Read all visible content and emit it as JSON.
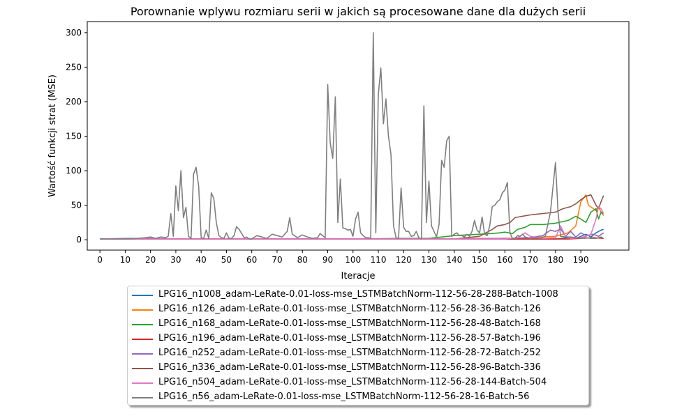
{
  "chart_data": {
    "type": "line",
    "title": "Porownanie wplywu rozmiaru serii w jakich są procesowane dane dla dużych serii",
    "xlabel": "Iteracje",
    "ylabel": "Wartość funkcji strat (MSE)",
    "xlim": [
      -5,
      209
    ],
    "ylim": [
      -15,
      316
    ],
    "xticks": [
      0,
      10,
      20,
      30,
      40,
      50,
      60,
      70,
      80,
      90,
      100,
      110,
      120,
      130,
      140,
      150,
      160,
      170,
      180,
      190
    ],
    "yticks": [
      0,
      50,
      100,
      150,
      200,
      250,
      300
    ],
    "grid": false,
    "legend_position": "below",
    "series": [
      {
        "name": "LPG16_n1008_adam-LeRate-0.01-loss-mse_LSTMBatchNorm-112-56-28-288-Batch-1008",
        "color": "#1f77b4",
        "points": [
          [
            0,
            1
          ],
          [
            100,
            1
          ],
          [
            140,
            1
          ],
          [
            150,
            1
          ],
          [
            160,
            1
          ],
          [
            170,
            1
          ],
          [
            180,
            1
          ],
          [
            185,
            3
          ],
          [
            188,
            2
          ],
          [
            190,
            5
          ],
          [
            192,
            8
          ],
          [
            194,
            4
          ],
          [
            196,
            10
          ],
          [
            198,
            14
          ],
          [
            199,
            15
          ]
        ]
      },
      {
        "name": "LPG16_n126_adam-LeRate-0.01-loss-mse_LSTMBatchNorm-112-56-28-36-Batch-126",
        "color": "#ff7f0e",
        "points": [
          [
            0,
            1
          ],
          [
            140,
            1
          ],
          [
            150,
            2
          ],
          [
            160,
            2
          ],
          [
            170,
            3
          ],
          [
            175,
            4
          ],
          [
            180,
            5
          ],
          [
            185,
            10
          ],
          [
            188,
            20
          ],
          [
            190,
            55
          ],
          [
            192,
            65
          ],
          [
            193,
            50
          ],
          [
            195,
            45
          ],
          [
            196,
            42
          ],
          [
            197,
            48
          ],
          [
            198,
            40
          ],
          [
            199,
            35
          ]
        ]
      },
      {
        "name": "LPG16_n168_adam-LeRate-0.01-loss-mse_LSTMBatchNorm-112-56-28-48-Batch-168",
        "color": "#2ca02c",
        "points": [
          [
            0,
            1
          ],
          [
            100,
            1
          ],
          [
            120,
            2
          ],
          [
            130,
            2
          ],
          [
            135,
            4
          ],
          [
            140,
            6
          ],
          [
            145,
            7
          ],
          [
            150,
            8
          ],
          [
            155,
            9
          ],
          [
            158,
            10
          ],
          [
            160,
            11
          ],
          [
            163,
            9
          ],
          [
            165,
            15
          ],
          [
            168,
            18
          ],
          [
            170,
            22
          ],
          [
            175,
            22
          ],
          [
            180,
            24
          ],
          [
            185,
            28
          ],
          [
            188,
            34
          ],
          [
            190,
            30
          ],
          [
            192,
            25
          ],
          [
            194,
            40
          ],
          [
            196,
            45
          ],
          [
            197,
            30
          ],
          [
            198,
            40
          ],
          [
            199,
            38
          ]
        ]
      },
      {
        "name": "LPG16_n196_adam-LeRate-0.01-loss-mse_LSTMBatchNorm-112-56-28-57-Batch-196",
        "color": "#d62728",
        "points": [
          [
            0,
            1
          ],
          [
            150,
            1
          ],
          [
            160,
            1
          ],
          [
            170,
            1
          ],
          [
            180,
            1
          ],
          [
            185,
            1
          ],
          [
            190,
            2
          ],
          [
            195,
            3
          ],
          [
            199,
            2
          ]
        ]
      },
      {
        "name": "LPG16_n252_adam-LeRate-0.01-loss-mse_LSTMBatchNorm-112-56-28-72-Batch-252",
        "color": "#9467bd",
        "points": [
          [
            0,
            1
          ],
          [
            10,
            2
          ],
          [
            20,
            2
          ],
          [
            30,
            1
          ],
          [
            100,
            1
          ],
          [
            140,
            1
          ],
          [
            160,
            2
          ],
          [
            170,
            3
          ],
          [
            175,
            6
          ],
          [
            178,
            14
          ],
          [
            180,
            12
          ],
          [
            182,
            16
          ],
          [
            184,
            5
          ],
          [
            186,
            12
          ],
          [
            188,
            4
          ],
          [
            190,
            10
          ],
          [
            192,
            6
          ],
          [
            195,
            8
          ],
          [
            197,
            5
          ],
          [
            199,
            10
          ]
        ]
      },
      {
        "name": "LPG16_n336_adam-LeRate-0.01-loss-mse_LSTMBatchNorm-112-56-28-96-Batch-336",
        "color": "#8c564b",
        "points": [
          [
            0,
            1
          ],
          [
            140,
            1
          ],
          [
            145,
            3
          ],
          [
            150,
            5
          ],
          [
            155,
            15
          ],
          [
            157,
            20
          ],
          [
            160,
            22
          ],
          [
            162,
            25
          ],
          [
            164,
            32
          ],
          [
            167,
            34
          ],
          [
            170,
            36
          ],
          [
            175,
            38
          ],
          [
            180,
            40
          ],
          [
            183,
            45
          ],
          [
            186,
            48
          ],
          [
            188,
            52
          ],
          [
            190,
            58
          ],
          [
            192,
            63
          ],
          [
            194,
            65
          ],
          [
            196,
            50
          ],
          [
            197,
            45
          ],
          [
            198,
            55
          ],
          [
            199,
            64
          ]
        ]
      },
      {
        "name": "LPG16_n504_adam-LeRate-0.01-loss-mse_LSTMBatchNorm-112-56-28-144-Batch-504",
        "color": "#e377c2",
        "points": [
          [
            0,
            1
          ],
          [
            100,
            1
          ],
          [
            150,
            1
          ],
          [
            160,
            1
          ],
          [
            165,
            3
          ],
          [
            168,
            10
          ],
          [
            170,
            5
          ],
          [
            175,
            2
          ],
          [
            180,
            3
          ],
          [
            182,
            20
          ],
          [
            184,
            5
          ],
          [
            186,
            2
          ],
          [
            190,
            3
          ],
          [
            192,
            5
          ],
          [
            194,
            8
          ],
          [
            196,
            30
          ],
          [
            197,
            48
          ],
          [
            198,
            45
          ],
          [
            199,
            38
          ]
        ]
      },
      {
        "name": "LPG16_n56_adam-LeRate-0.01-loss-mse_LSTMBatchNorm-112-56-28-16-Batch-56",
        "color": "#7f7f7f",
        "points": [
          [
            0,
            1
          ],
          [
            10,
            1
          ],
          [
            15,
            2
          ],
          [
            18,
            3
          ],
          [
            20,
            4
          ],
          [
            22,
            2
          ],
          [
            24,
            4
          ],
          [
            26,
            3
          ],
          [
            27,
            5
          ],
          [
            28,
            38
          ],
          [
            29,
            5
          ],
          [
            30,
            78
          ],
          [
            31,
            42
          ],
          [
            32,
            100
          ],
          [
            33,
            32
          ],
          [
            34,
            47
          ],
          [
            35,
            5
          ],
          [
            36,
            2
          ],
          [
            37,
            95
          ],
          [
            38,
            105
          ],
          [
            39,
            78
          ],
          [
            40,
            3
          ],
          [
            41,
            2
          ],
          [
            42,
            14
          ],
          [
            43,
            2
          ],
          [
            44,
            68
          ],
          [
            45,
            60
          ],
          [
            46,
            25
          ],
          [
            47,
            6
          ],
          [
            48,
            3
          ],
          [
            49,
            2
          ],
          [
            50,
            10
          ],
          [
            51,
            2
          ],
          [
            52,
            2
          ],
          [
            53,
            6
          ],
          [
            54,
            19
          ],
          [
            55,
            15
          ],
          [
            56,
            9
          ],
          [
            57,
            3
          ],
          [
            58,
            4
          ],
          [
            59,
            1
          ],
          [
            60,
            1
          ],
          [
            62,
            6
          ],
          [
            64,
            4
          ],
          [
            66,
            2
          ],
          [
            68,
            8
          ],
          [
            70,
            6
          ],
          [
            72,
            4
          ],
          [
            74,
            12
          ],
          [
            75,
            32
          ],
          [
            76,
            8
          ],
          [
            78,
            3
          ],
          [
            80,
            7
          ],
          [
            82,
            4
          ],
          [
            84,
            2
          ],
          [
            86,
            3
          ],
          [
            87,
            9
          ],
          [
            88,
            6
          ],
          [
            89,
            3
          ],
          [
            90,
            225
          ],
          [
            91,
            140
          ],
          [
            92,
            118
          ],
          [
            93,
            207
          ],
          [
            94,
            25
          ],
          [
            95,
            88
          ],
          [
            96,
            17
          ],
          [
            97,
            16
          ],
          [
            98,
            14
          ],
          [
            99,
            15
          ],
          [
            100,
            5
          ],
          [
            101,
            30
          ],
          [
            102,
            40
          ],
          [
            103,
            10
          ],
          [
            104,
            6
          ],
          [
            105,
            3
          ],
          [
            106,
            3
          ],
          [
            107,
            2
          ],
          [
            108,
            300
          ],
          [
            109,
            10
          ],
          [
            110,
            210
          ],
          [
            111,
            249
          ],
          [
            112,
            168
          ],
          [
            113,
            204
          ],
          [
            114,
            150
          ],
          [
            115,
            124
          ],
          [
            116,
            20
          ],
          [
            117,
            3
          ],
          [
            118,
            2
          ],
          [
            119,
            75
          ],
          [
            120,
            18
          ],
          [
            121,
            12
          ],
          [
            122,
            12
          ],
          [
            123,
            5
          ],
          [
            124,
            6
          ],
          [
            125,
            12
          ],
          [
            126,
            3
          ],
          [
            127,
            1
          ],
          [
            128,
            194
          ],
          [
            129,
            25
          ],
          [
            130,
            85
          ],
          [
            131,
            20
          ],
          [
            132,
            12
          ],
          [
            133,
            4
          ],
          [
            134,
            22
          ],
          [
            135,
            115
          ],
          [
            136,
            105
          ],
          [
            137,
            143
          ],
          [
            138,
            150
          ],
          [
            139,
            5
          ],
          [
            140,
            8
          ],
          [
            141,
            10
          ],
          [
            142,
            6
          ],
          [
            143,
            6
          ],
          [
            144,
            4
          ],
          [
            145,
            8
          ],
          [
            146,
            5
          ],
          [
            147,
            12
          ],
          [
            148,
            28
          ],
          [
            149,
            14
          ],
          [
            150,
            10
          ],
          [
            151,
            33
          ],
          [
            152,
            8
          ],
          [
            153,
            6
          ],
          [
            154,
            20
          ],
          [
            155,
            48
          ],
          [
            156,
            50
          ],
          [
            157,
            55
          ],
          [
            158,
            58
          ],
          [
            159,
            68
          ],
          [
            160,
            72
          ],
          [
            161,
            83
          ],
          [
            162,
            10
          ],
          [
            163,
            2
          ],
          [
            164,
            2
          ],
          [
            165,
            6
          ],
          [
            166,
            5
          ],
          [
            167,
            8
          ],
          [
            168,
            4
          ],
          [
            169,
            3
          ],
          [
            170,
            2
          ],
          [
            172,
            3
          ],
          [
            174,
            2
          ],
          [
            176,
            5
          ],
          [
            178,
            40
          ],
          [
            180,
            112
          ],
          [
            181,
            40
          ],
          [
            182,
            5
          ],
          [
            184,
            4
          ],
          [
            186,
            4
          ],
          [
            188,
            3
          ],
          [
            190,
            2
          ],
          [
            192,
            3
          ],
          [
            194,
            2
          ],
          [
            196,
            2
          ],
          [
            198,
            4
          ],
          [
            199,
            2
          ]
        ]
      }
    ]
  }
}
